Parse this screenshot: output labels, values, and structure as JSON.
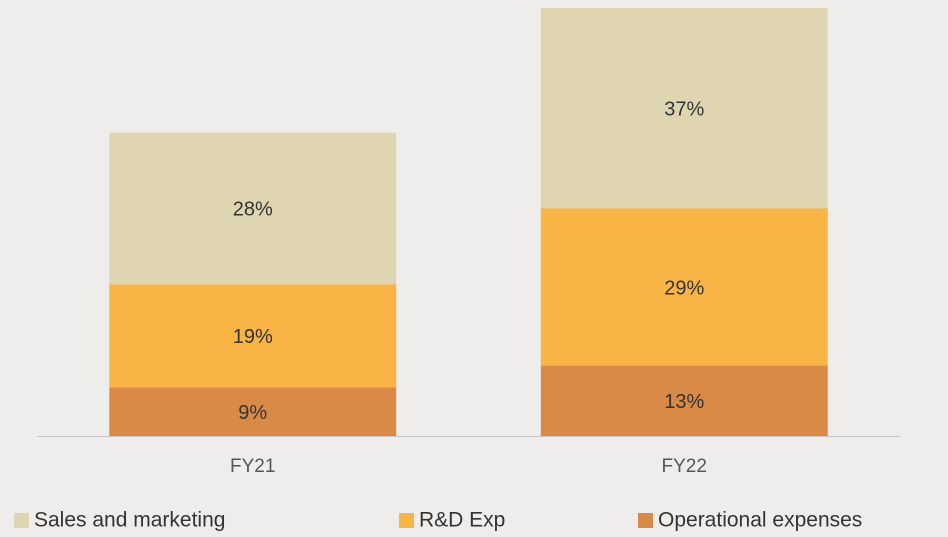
{
  "chart_data": {
    "type": "stacked_bar",
    "categories": [
      "FY21",
      "FY22"
    ],
    "series": [
      {
        "name": "Sales and marketing",
        "color": "#e0d5b1",
        "values": [
          28,
          37
        ],
        "value_labels": [
          "28%",
          "37%"
        ]
      },
      {
        "name": "R&D Exp",
        "color": "#f8b444",
        "values": [
          19,
          29
        ],
        "value_labels": [
          "19%",
          "29%"
        ]
      },
      {
        "name": "Operational expenses",
        "color": "#d98a46",
        "values": [
          9,
          13
        ],
        "value_labels": [
          "9%",
          "13%"
        ]
      }
    ],
    "legend": "bottom"
  }
}
